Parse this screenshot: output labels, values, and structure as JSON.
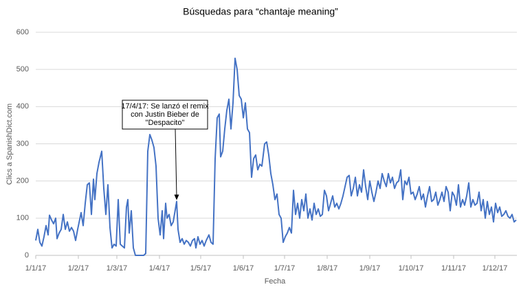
{
  "chart_data": {
    "type": "line",
    "title": "Búsquedas para “chantaje meaning”",
    "x_label": "Fecha",
    "y_label": "Clics a SpanishDict.com",
    "annotation": {
      "lines": [
        "17/4/17: Se lanzó el remix",
        "con Justin Bieber de",
        "\"Despacito\""
      ]
    },
    "grid": true,
    "xlim": [
      0,
      350
    ],
    "xticks": [
      {
        "value": 0,
        "label": "1/1/17"
      },
      {
        "value": 31,
        "label": "1/2/17"
      },
      {
        "value": 59,
        "label": "1/3/17"
      },
      {
        "value": 90,
        "label": "1/4/17"
      },
      {
        "value": 120,
        "label": "1/5/17"
      },
      {
        "value": 151,
        "label": "1/6/17"
      },
      {
        "value": 181,
        "label": "1/7/17"
      },
      {
        "value": 212,
        "label": "1/8/17"
      },
      {
        "value": 243,
        "label": "1/9/17"
      },
      {
        "value": 273,
        "label": "1/10/17"
      },
      {
        "value": 304,
        "label": "1/11/17"
      },
      {
        "value": 334,
        "label": "1/12/17"
      }
    ],
    "ylim": [
      0,
      600
    ],
    "yticks": [
      0,
      100,
      200,
      300,
      400,
      500,
      600
    ],
    "x": [
      0,
      1.5,
      3,
      4.5,
      6,
      7.5,
      9,
      10,
      11.5,
      13,
      14.5,
      15.5,
      17,
      18.5,
      20,
      21.5,
      23,
      24.5,
      26,
      27.5,
      29,
      30.5,
      33,
      34.5,
      36,
      37.5,
      39,
      40.5,
      42,
      43,
      44.5,
      46,
      48,
      49.5,
      51,
      52.5,
      54,
      55.5,
      57,
      58.5,
      60,
      61.5,
      63,
      64.5,
      66,
      67,
      68,
      69.5,
      71,
      72.5,
      75.5,
      78.5,
      80,
      81.5,
      83,
      84.5,
      86,
      87.5,
      89,
      90.5,
      92,
      93,
      94.5,
      95.5,
      97,
      98.5,
      100,
      102.5,
      103.5,
      105,
      106.5,
      108,
      109.5,
      111,
      112.5,
      114,
      115.5,
      116.5,
      118,
      119.5,
      121,
      122.5,
      124,
      126,
      127.5,
      129,
      130.5,
      132,
      133.5,
      134.5,
      136,
      137.5,
      139,
      140.5,
      142,
      143.5,
      145,
      146.5,
      148,
      149.5,
      151,
      152.5,
      154,
      155.5,
      157,
      158.5,
      160,
      161.5,
      163,
      164.5,
      166.5,
      168,
      169.5,
      171,
      172.5,
      174,
      175.5,
      177,
      178.5,
      180,
      181.5,
      183,
      184.5,
      186,
      187.5,
      189,
      190.5,
      192,
      193.5,
      195,
      196.5,
      198,
      199.5,
      201,
      202.5,
      204,
      205.5,
      207,
      208.5,
      210,
      211.5,
      213,
      214.5,
      216,
      217.5,
      219,
      220.5,
      222,
      223.5,
      225,
      226.5,
      228,
      229.5,
      231,
      232.5,
      234,
      235.5,
      237,
      238.5,
      240,
      241.5,
      243,
      244.5,
      246,
      247.5,
      249,
      250.5,
      252,
      253.5,
      255,
      256.5,
      258,
      259.5,
      261,
      262.5,
      264,
      265.5,
      267,
      268.5,
      270,
      271.5,
      273,
      274.5,
      276,
      277.5,
      279,
      280.5,
      282,
      283.5,
      285,
      286.5,
      288,
      289.5,
      291,
      292.5,
      294,
      295.5,
      297,
      298.5,
      300,
      301.5,
      303,
      304.5,
      306,
      307.5,
      309,
      310.5,
      312,
      313.5,
      315,
      316.5,
      318,
      319.5,
      321,
      322.5,
      324,
      325.5,
      327,
      328.5,
      330,
      331.5,
      333,
      334.5,
      336,
      337.5,
      339,
      340.5,
      342,
      343.5,
      345,
      346.5,
      348,
      349.5
    ],
    "series": [
      {
        "color": "#4472c4",
        "values": [
          40,
          70,
          35,
          25,
          50,
          80,
          55,
          108,
          95,
          85,
          100,
          45,
          60,
          70,
          110,
          70,
          90,
          65,
          75,
          65,
          40,
          70,
          115,
          80,
          140,
          190,
          195,
          110,
          205,
          150,
          220,
          250,
          280,
          180,
          110,
          190,
          75,
          20,
          30,
          25,
          150,
          30,
          25,
          20,
          130,
          150,
          60,
          120,
          20,
          0,
          0,
          0,
          5,
          280,
          325,
          310,
          290,
          240,
          100,
          55,
          120,
          45,
          140,
          100,
          110,
          80,
          90,
          145,
          70,
          35,
          45,
          30,
          40,
          35,
          25,
          40,
          45,
          20,
          50,
          30,
          40,
          25,
          40,
          55,
          35,
          30,
          260,
          370,
          380,
          265,
          280,
          340,
          390,
          420,
          340,
          410,
          530,
          500,
          430,
          420,
          370,
          410,
          340,
          330,
          210,
          260,
          270,
          230,
          245,
          240,
          300,
          305,
          270,
          220,
          190,
          150,
          165,
          110,
          100,
          35,
          50,
          60,
          75,
          60,
          175,
          110,
          140,
          100,
          150,
          120,
          165,
          100,
          125,
          95,
          140,
          110,
          125,
          105,
          110,
          175,
          160,
          120,
          140,
          160,
          130,
          140,
          125,
          140,
          160,
          185,
          210,
          215,
          160,
          180,
          210,
          160,
          190,
          170,
          230,
          185,
          150,
          200,
          170,
          145,
          170,
          200,
          180,
          220,
          200,
          185,
          220,
          195,
          210,
          180,
          195,
          200,
          230,
          150,
          200,
          190,
          210,
          165,
          170,
          150,
          165,
          185,
          150,
          165,
          130,
          160,
          185,
          145,
          150,
          170,
          135,
          150,
          170,
          145,
          185,
          170,
          120,
          170,
          160,
          135,
          190,
          130,
          150,
          135,
          160,
          195,
          130,
          150,
          135,
          140,
          170,
          120,
          150,
          100,
          145,
          110,
          130,
          90,
          140,
          115,
          130,
          105,
          110,
          120,
          105,
          100,
          110,
          90,
          95
        ]
      }
    ]
  }
}
